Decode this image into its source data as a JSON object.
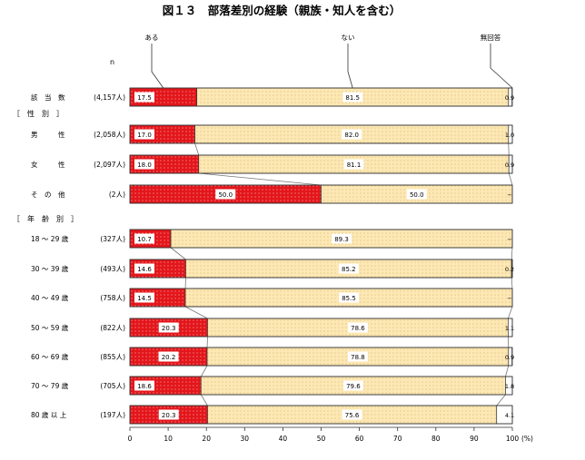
{
  "chart_data": {
    "type": "bar",
    "title": "図１３　部落差別の経験（親族・知人を含む）",
    "unit": "(%)",
    "series": [
      {
        "name": "ある",
        "color": "#e3161b"
      },
      {
        "name": "ない",
        "color": "#fde8b4"
      },
      {
        "name": "無回答",
        "color": "#ffffff"
      }
    ],
    "section_labels": [
      "［　性　別　］",
      "［　年　齢　別　］"
    ],
    "rows": [
      {
        "label": "該　当　数",
        "n": "(4,157人)",
        "values": [
          17.5,
          81.5,
          0.9
        ],
        "labels": [
          "17.5",
          "81.5",
          "0.9"
        ]
      },
      {
        "label": "男　　　性",
        "n": "(2,058人)",
        "values": [
          17.0,
          82.0,
          1.0
        ],
        "labels": [
          "17.0",
          "82.0",
          "1.0"
        ]
      },
      {
        "label": "女　　　性",
        "n": "(2,097人)",
        "values": [
          18.0,
          81.1,
          0.9
        ],
        "labels": [
          "18.0",
          "81.1",
          "0.9"
        ]
      },
      {
        "label": "そ　の　他",
        "n": "(2人)",
        "values": [
          50.0,
          50.0,
          0
        ],
        "labels": [
          "50.0",
          "50.0",
          "−"
        ]
      },
      {
        "label": "18 〜 29 歳",
        "n": "(327人)",
        "values": [
          10.7,
          89.3,
          0
        ],
        "labels": [
          "10.7",
          "89.3",
          "−"
        ]
      },
      {
        "label": "30 〜 39 歳",
        "n": "(493人)",
        "values": [
          14.6,
          85.2,
          0.2
        ],
        "labels": [
          "14.6",
          "85.2",
          "0.2"
        ]
      },
      {
        "label": "40 〜 49 歳",
        "n": "(758人)",
        "values": [
          14.5,
          85.5,
          0
        ],
        "labels": [
          "14.5",
          "85.5",
          "−"
        ]
      },
      {
        "label": "50 〜 59 歳",
        "n": "(822人)",
        "values": [
          20.3,
          78.6,
          1.1
        ],
        "labels": [
          "20.3",
          "78.6",
          "1.1"
        ]
      },
      {
        "label": "60 〜 69 歳",
        "n": "(855人)",
        "values": [
          20.2,
          78.8,
          0.9
        ],
        "labels": [
          "20.2",
          "78.8",
          "0.9"
        ]
      },
      {
        "label": "70 〜 79 歳",
        "n": "(705人)",
        "values": [
          18.6,
          79.6,
          1.8
        ],
        "labels": [
          "18.6",
          "79.6",
          "1.8"
        ]
      },
      {
        "label": "80 歳 以 上",
        "n": "(197人)",
        "values": [
          20.3,
          75.6,
          4.1
        ],
        "labels": [
          "20.3",
          "75.6",
          "4.1"
        ]
      }
    ],
    "xlim": [
      0,
      100
    ],
    "xticks": [
      "0",
      "10",
      "20",
      "30",
      "40",
      "50",
      "60",
      "70",
      "80",
      "90",
      "100"
    ],
    "n_marker": "n"
  }
}
